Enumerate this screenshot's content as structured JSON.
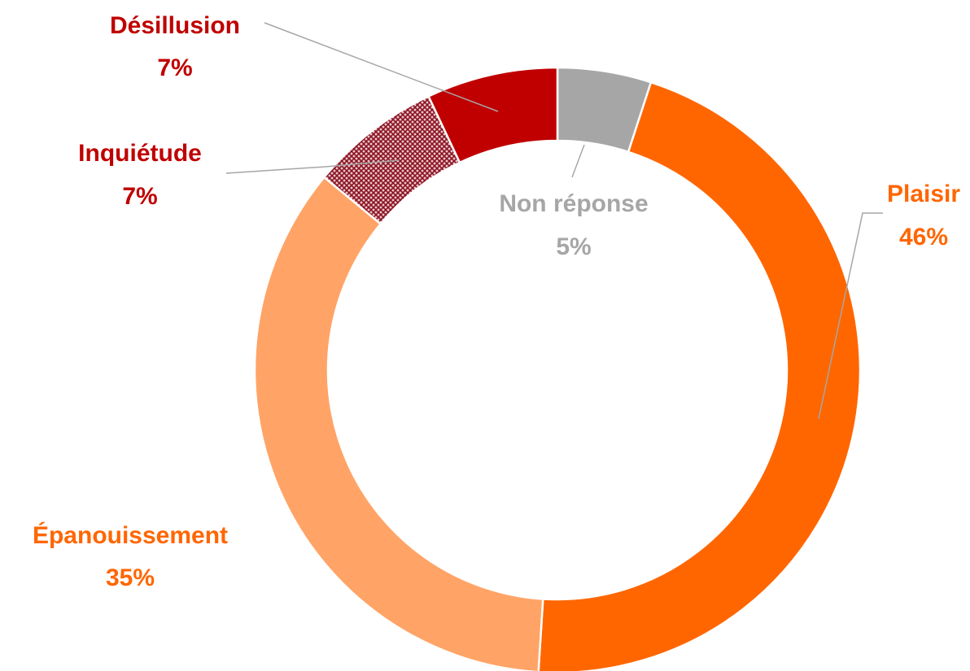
{
  "chart_data": {
    "type": "donut",
    "categories": [
      "Non réponse",
      "Plaisir",
      "Épanouissement",
      "Inquiétude",
      "Désillusion"
    ],
    "values": [
      5,
      46,
      35,
      7,
      7
    ],
    "value_labels": [
      "5%",
      "46%",
      "35%",
      "7%",
      "7%"
    ],
    "colors": [
      "#a6a6a6",
      "#ff6600",
      "#ffa466",
      "#a0142a",
      "#c00000"
    ],
    "hatched": [
      false,
      false,
      false,
      true,
      false
    ],
    "label_colors": [
      "#a6a6a6",
      "#ff6600",
      "#ff6600",
      "#c00000",
      "#c00000"
    ]
  }
}
